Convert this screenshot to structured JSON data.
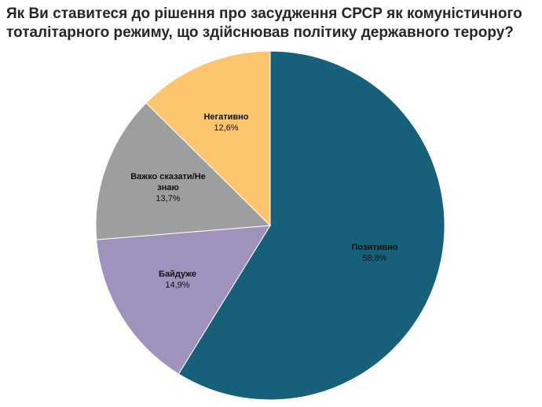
{
  "chart_data": {
    "type": "pie",
    "title": "Як Ви ставитеся до рішення про засудження СРСР як комуністичного тоталітарного режиму, що здійснював політику державного терору?",
    "slices": [
      {
        "name": "Позитивно",
        "value": 58.8,
        "value_label": "58,8%",
        "color": "#17607a"
      },
      {
        "name": "Байдуже",
        "value": 14.9,
        "value_label": "14,9%",
        "color": "#9f92bd"
      },
      {
        "name": "Важко сказати/Не знаю",
        "value": 13.7,
        "value_label": "13,7%",
        "color": "#9e9e9e"
      },
      {
        "name": "Негативно",
        "value": 12.6,
        "value_label": "12,6%",
        "color": "#fcc56e"
      }
    ],
    "start_angle_deg": 0,
    "direction": "clockwise",
    "legend": "none",
    "labels": "inside"
  }
}
